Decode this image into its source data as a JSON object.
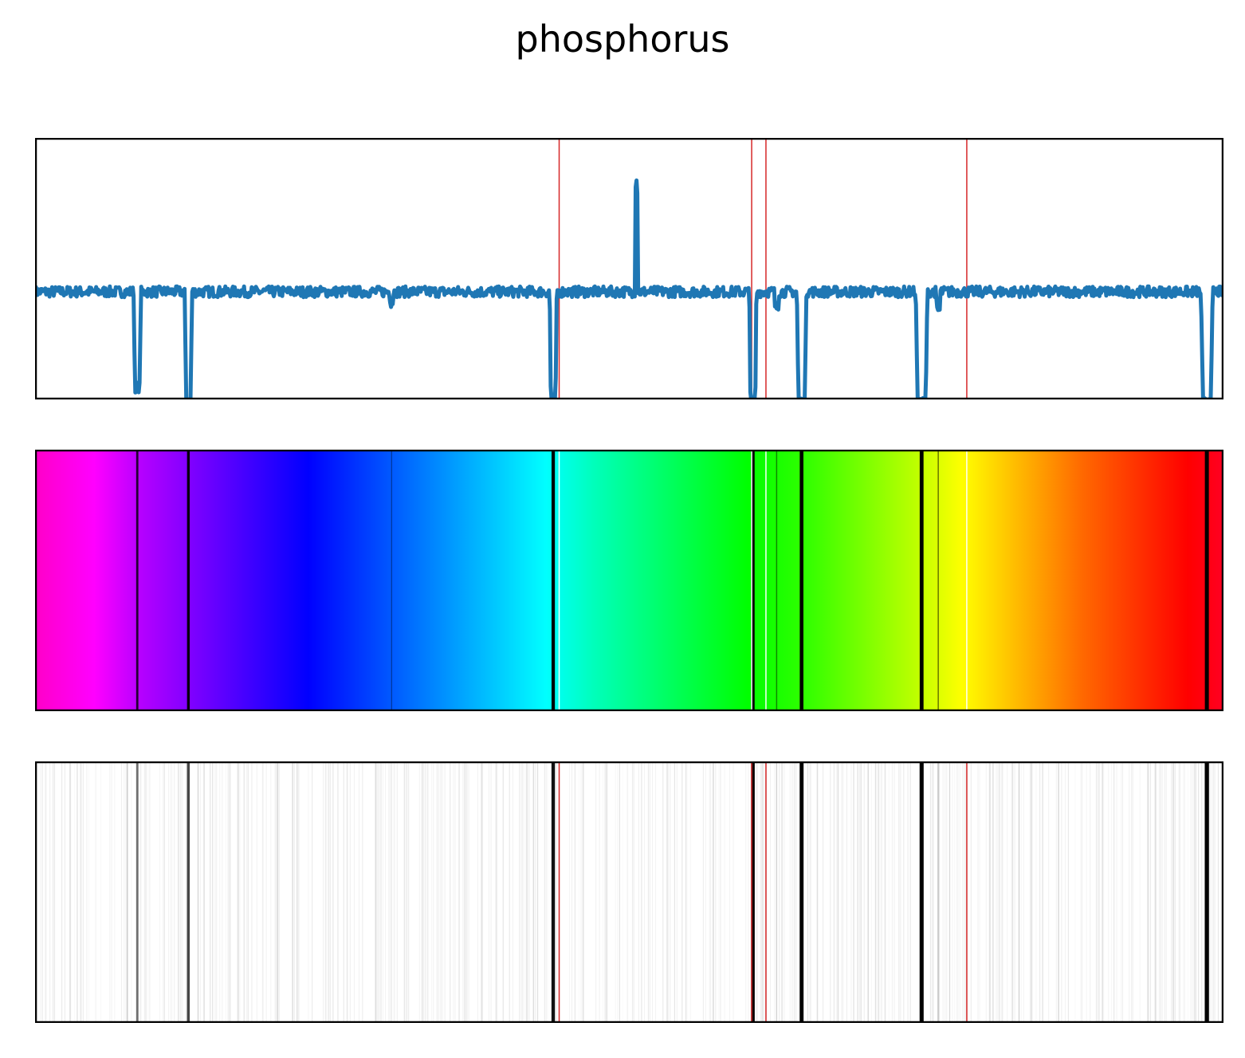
{
  "chart_data": {
    "type": "line",
    "title": "phosphorus",
    "panels": [
      "line",
      "spectrum",
      "barcode"
    ],
    "x_range": [
      0,
      1
    ],
    "ylim": [
      -0.7,
      1.0
    ],
    "baseline": 0.0,
    "noise_amplitude": 0.035,
    "absorption_lines": [
      {
        "x": 0.086,
        "depth": 0.62,
        "width": 0.003,
        "strength": 0.45
      },
      {
        "x": 0.129,
        "depth": 0.72,
        "width": 0.003,
        "strength": 0.6
      },
      {
        "x": 0.3,
        "depth": 0.07,
        "width": 0.0015,
        "strength": 0.05
      },
      {
        "x": 0.436,
        "depth": 0.7,
        "width": 0.003,
        "strength": 0.8
      },
      {
        "x": 0.604,
        "depth": 0.72,
        "width": 0.003,
        "strength": 0.85
      },
      {
        "x": 0.624,
        "depth": 0.1,
        "width": 0.002,
        "strength": 0.12
      },
      {
        "x": 0.645,
        "depth": 0.72,
        "width": 0.004,
        "strength": 0.9
      },
      {
        "x": 0.746,
        "depth": 0.72,
        "width": 0.005,
        "strength": 0.95
      },
      {
        "x": 0.76,
        "depth": 0.12,
        "width": 0.002,
        "strength": 0.15
      },
      {
        "x": 0.986,
        "depth": 0.72,
        "width": 0.005,
        "strength": 1.0
      }
    ],
    "emission_lines": [
      {
        "x": 0.506,
        "height": 0.76
      }
    ],
    "reference_lines": [
      0.441,
      0.603,
      0.615,
      0.784
    ],
    "colors": {
      "series": "#1f77b4",
      "reference": "#d62728",
      "frame": "#000000"
    },
    "spectrum_colormap": [
      [
        0.0,
        "#ff00c8"
      ],
      [
        0.05,
        "#ff00ff"
      ],
      [
        0.09,
        "#b400ff"
      ],
      [
        0.23,
        "#0000ff"
      ],
      [
        0.33,
        "#007fff"
      ],
      [
        0.43,
        "#00ffff"
      ],
      [
        0.47,
        "#00ffbb"
      ],
      [
        0.6,
        "#00ff00"
      ],
      [
        0.65,
        "#33ff00"
      ],
      [
        0.74,
        "#bbff00"
      ],
      [
        0.78,
        "#ffff00"
      ],
      [
        0.88,
        "#ff6a00"
      ],
      [
        0.97,
        "#ff0000"
      ],
      [
        1.0,
        "#ff0022"
      ]
    ]
  }
}
